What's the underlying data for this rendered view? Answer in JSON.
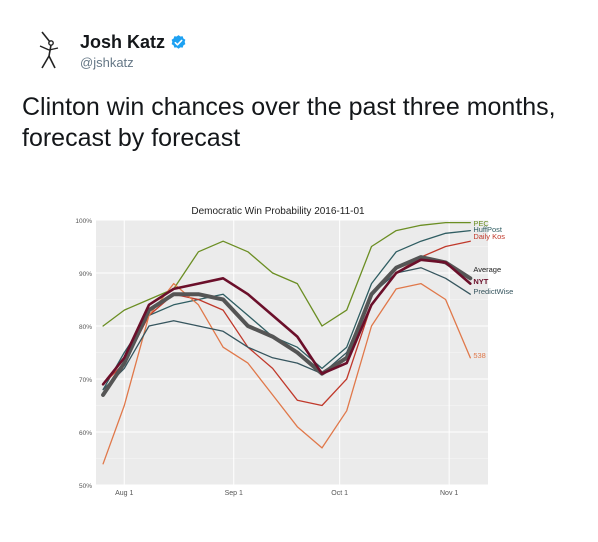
{
  "tweet": {
    "author_name": "Josh Katz",
    "handle": "@jshkatz",
    "text": "Clinton win chances over the past three months, forecast by forecast",
    "avatar_icon": "stick-figure-avatar-icon",
    "verified_icon": "verified-badge-icon"
  },
  "colors": {
    "PEC": "#6b8e23",
    "HuffPost": "#2f5d62",
    "Daily Kos": "#c0392b",
    "Average": "#555555",
    "NYT": "#6b0f2a",
    "PredictWise": "#36555e",
    "538": "#e0784a",
    "verified": "#1da1f2"
  },
  "chart_data": {
    "type": "line",
    "title": "Democratic Win Probability 2016-11-01",
    "xlabel": "",
    "ylabel": "",
    "x_ticks": [
      "Aug 1",
      "Sep 1",
      "Oct 1",
      "Nov 1"
    ],
    "y_ticks": [
      "50%",
      "60%",
      "70%",
      "80%",
      "90%",
      "100%"
    ],
    "ylim": [
      50,
      100
    ],
    "grid": true,
    "legend": "direct labels at right end of lines",
    "x_days": [
      -6,
      0,
      7,
      14,
      21,
      28,
      35,
      42,
      49,
      56,
      63,
      70,
      77,
      84,
      91,
      98
    ],
    "series": [
      {
        "name": "PEC",
        "values": [
          80,
          83,
          85,
          87,
          94,
          96,
          94,
          90,
          88,
          80,
          83,
          95,
          98,
          99,
          99.5,
          99.5
        ]
      },
      {
        "name": "HuffPost",
        "values": [
          68,
          75,
          82,
          84,
          85,
          86,
          82,
          78,
          76,
          72,
          76,
          88,
          94,
          96,
          97.5,
          98
        ]
      },
      {
        "name": "Daily Kos",
        "values": [
          69,
          73,
          82,
          86,
          85,
          83,
          76,
          72,
          66,
          65,
          70,
          84,
          90,
          93,
          95,
          96
        ]
      },
      {
        "name": "Average",
        "values": [
          67,
          73,
          83,
          86,
          86,
          85,
          80,
          78,
          75,
          71,
          74,
          86,
          91,
          93,
          92,
          89
        ]
      },
      {
        "name": "NYT",
        "values": [
          69,
          74,
          84,
          87,
          88,
          89,
          86,
          82,
          78,
          71,
          73,
          84,
          90,
          92.5,
          92,
          88
        ]
      },
      {
        "name": "PredictWise",
        "values": [
          68,
          72,
          80,
          81,
          80,
          79,
          76,
          74,
          73,
          71,
          75,
          86,
          90,
          91,
          89,
          86
        ]
      },
      {
        "name": "538",
        "values": [
          54,
          65,
          82,
          88,
          84,
          76,
          73,
          67,
          61,
          57,
          64,
          80,
          87,
          88,
          85,
          74
        ]
      }
    ]
  }
}
